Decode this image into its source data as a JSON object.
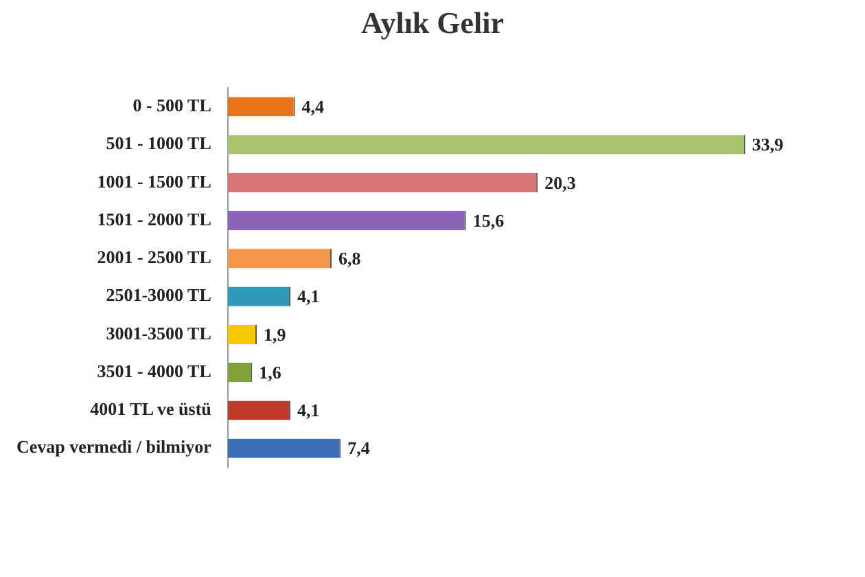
{
  "chart_data": {
    "type": "bar",
    "orientation": "horizontal",
    "title": "Aylık Gelir",
    "categories": [
      "0 - 500 TL",
      "501 - 1000 TL",
      "1001 - 1500 TL",
      "1501 - 2000 TL",
      "2001 - 2500 TL",
      "2501-3000 TL",
      "3001-3500 TL",
      "3501 - 4000 TL",
      "4001 TL ve üstü",
      "Cevap vermedi / bilmiyor"
    ],
    "values": [
      4.4,
      33.9,
      20.3,
      15.6,
      6.8,
      4.1,
      1.9,
      1.6,
      4.1,
      7.4
    ],
    "value_labels": [
      "4,4",
      "33,9",
      "20,3",
      "15,6",
      "6,8",
      "4,1",
      "1,9",
      "1,6",
      "4,1",
      "7,4"
    ],
    "colors": [
      "#e8711c",
      "#a9c46c",
      "#d9767a",
      "#8a64b8",
      "#f5964a",
      "#2e9ab8",
      "#f5c800",
      "#7fa23a",
      "#c0392b",
      "#3a6fb8"
    ],
    "legend": false
  }
}
